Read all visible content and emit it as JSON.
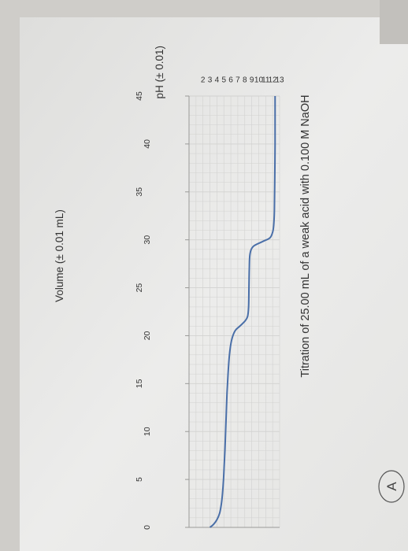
{
  "chart_data": {
    "type": "line",
    "title": "Titration of 25.00 mL of a weak acid with 0.100 M NaOH",
    "xlabel": "Volume (± 0.01 mL)",
    "ylabel": "pH (± 0.01)",
    "xlim": [
      0,
      45
    ],
    "ylim": [
      0,
      13
    ],
    "x_ticks": [
      "0",
      "5",
      "10",
      "15",
      "20",
      "25",
      "30",
      "35",
      "40",
      "45"
    ],
    "y_ticks": [
      "2",
      "3",
      "4",
      "5",
      "6",
      "7",
      "8",
      "9",
      "10",
      "11",
      "12",
      "13"
    ],
    "grid": true,
    "series": [
      {
        "color": "#4a6fa8",
        "x": [
          0,
          0.3,
          0.8,
          1.5,
          2.5,
          3.5,
          5,
          6.5,
          8,
          10,
          12,
          14,
          16,
          18,
          19.5,
          20.5,
          21,
          21.5,
          22,
          23,
          25,
          27,
          28.5,
          29.3,
          29.8,
          30.2,
          30.8,
          31.5,
          33,
          36,
          40,
          43,
          45
        ],
        "y": [
          3.0,
          3.5,
          4.0,
          4.4,
          4.65,
          4.8,
          4.95,
          5.05,
          5.15,
          5.25,
          5.35,
          5.45,
          5.6,
          5.8,
          6.1,
          6.6,
          7.3,
          8.0,
          8.4,
          8.55,
          8.6,
          8.65,
          8.75,
          9.2,
          10.5,
          11.6,
          12.0,
          12.15,
          12.25,
          12.3,
          12.35,
          12.35,
          12.35
        ]
      }
    ]
  },
  "annotation": "A",
  "colors": {
    "paper": "#ebebea",
    "grid": "#d2d2d0",
    "axis": "#9a9a98",
    "text": "#333333",
    "curve": "#4a6fa8"
  }
}
